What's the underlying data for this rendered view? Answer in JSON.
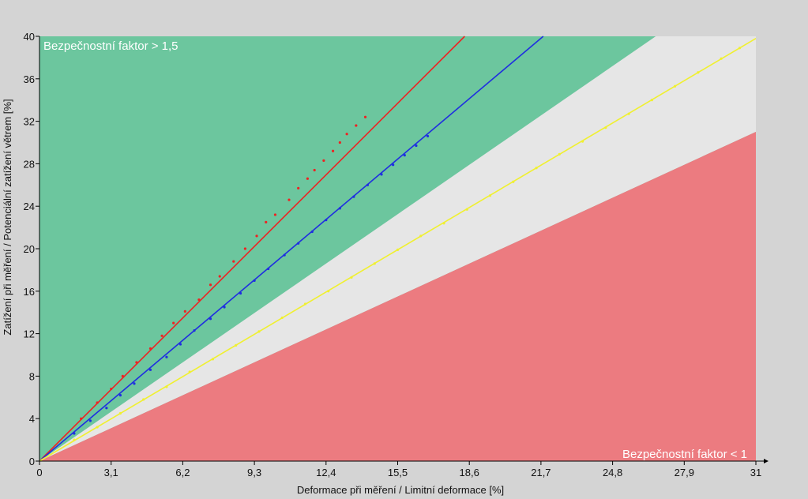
{
  "chart_data": {
    "type": "scatter",
    "title": "",
    "xlabel": "Deformace při měření / Limitní deformace [%]",
    "ylabel": "Zatížení při měření / Potenciální zatížení větrem [%]",
    "xlim": [
      0,
      31
    ],
    "ylim": [
      0,
      40
    ],
    "x_ticks": [
      "0",
      "3,1",
      "6,2",
      "9,3",
      "12,4",
      "15,5",
      "18,6",
      "21,7",
      "24,8",
      "27,9",
      "31"
    ],
    "y_ticks": [
      "0",
      "4",
      "8",
      "12",
      "16",
      "20",
      "24",
      "28",
      "32",
      "36",
      "40"
    ],
    "grid": false,
    "zones": [
      {
        "label": "Bezpečnostní faktor > 1,5",
        "color": "#6cc69e",
        "lower_slope": 1.5
      },
      {
        "label": "",
        "color": "#e6e6e6",
        "lower_slope": 1.0,
        "upper_slope": 1.5
      },
      {
        "label": "Bezpečnostní faktor < 1",
        "color": "#ec7b80",
        "upper_slope": 1.0
      }
    ],
    "series": [
      {
        "color": "#ee2222",
        "line": {
          "x": [
            0,
            18.4
          ],
          "y": [
            0,
            40
          ]
        },
        "points": {
          "x": [
            1.8,
            2.5,
            3.1,
            3.6,
            4.2,
            4.8,
            5.3,
            5.8,
            6.3,
            6.9,
            7.4,
            7.8,
            8.4,
            8.9,
            9.4,
            9.8,
            10.2,
            10.8,
            11.2,
            11.6,
            11.9,
            12.3,
            12.7,
            13.0,
            13.3,
            13.7,
            14.1
          ],
          "y": [
            4.0,
            5.5,
            6.8,
            8.0,
            9.3,
            10.6,
            11.8,
            13.0,
            14.1,
            15.2,
            16.6,
            17.4,
            18.8,
            20.0,
            21.2,
            22.5,
            23.2,
            24.6,
            25.7,
            26.6,
            27.4,
            28.3,
            29.2,
            30.0,
            30.8,
            31.6,
            32.4
          ]
        }
      },
      {
        "color": "#1f2ee0",
        "line": {
          "x": [
            0,
            21.8
          ],
          "y": [
            0,
            40
          ]
        },
        "points": {
          "x": [
            1.5,
            2.2,
            2.9,
            3.5,
            4.1,
            4.8,
            5.5,
            6.1,
            6.7,
            7.4,
            8.0,
            8.7,
            9.3,
            9.9,
            10.6,
            11.2,
            11.8,
            12.4,
            13.0,
            13.6,
            14.2,
            14.8,
            15.3,
            15.8,
            16.3,
            16.8
          ],
          "y": [
            2.6,
            3.8,
            5.0,
            6.2,
            7.3,
            8.6,
            9.8,
            11.0,
            12.3,
            13.4,
            14.5,
            15.8,
            17.0,
            18.1,
            19.4,
            20.5,
            21.6,
            22.7,
            23.8,
            24.9,
            26.0,
            27.0,
            27.9,
            28.8,
            29.7,
            30.6
          ]
        }
      },
      {
        "color": "#f0f030",
        "line": {
          "x": [
            0,
            31
          ],
          "y": [
            0,
            39.8
          ]
        },
        "points": {
          "x": [
            1.5,
            2.5,
            3.5,
            4.5,
            5.5,
            6.5,
            7.5,
            8.5,
            9.5,
            10.5,
            11.5,
            12.5,
            13.5,
            14.5,
            15.5,
            16.5,
            17.5,
            18.5,
            19.5,
            20.5,
            21.5,
            22.5,
            23.5,
            24.5,
            25.5,
            26.5,
            27.5,
            28.5,
            29.5,
            30.3
          ],
          "y": [
            2.0,
            3.2,
            4.5,
            5.8,
            7.0,
            8.4,
            9.6,
            10.9,
            12.2,
            13.5,
            14.8,
            16.0,
            17.3,
            18.6,
            19.9,
            21.2,
            22.4,
            23.7,
            25.0,
            26.3,
            27.6,
            28.9,
            30.1,
            31.4,
            32.7,
            34.0,
            35.3,
            36.6,
            37.9,
            38.9
          ]
        }
      }
    ]
  }
}
